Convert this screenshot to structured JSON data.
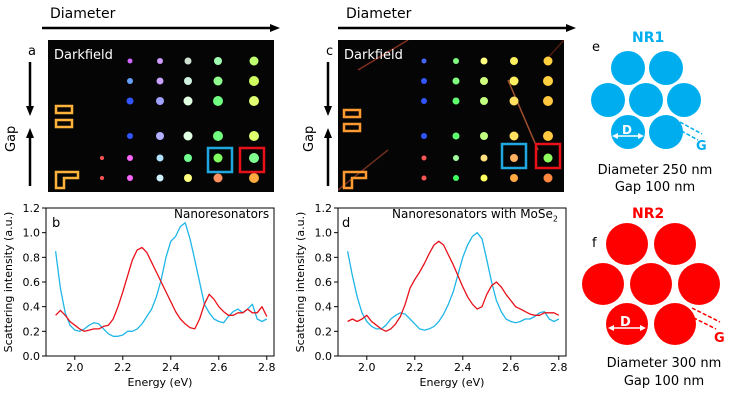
{
  "panels": {
    "a": {
      "letter": "a",
      "label": "Darkfield",
      "top_axis_label": "Diameter",
      "side_axis_label": "Gap"
    },
    "b": {
      "letter": "b",
      "annotation": "Nanoresonators"
    },
    "c": {
      "letter": "c",
      "label": "Darkfield",
      "top_axis_label": "Diameter",
      "side_axis_label": "Gap"
    },
    "d": {
      "letter": "d",
      "annotation_prefix": "Nanoresonators with MoSe",
      "annotation_sub": "2"
    },
    "e": {
      "letter": "e",
      "title": "NR1",
      "diameter_symbol": "D",
      "gap_symbol": "G",
      "caption_line1": "Diameter 250 nm",
      "caption_line2": "Gap 100 nm",
      "color": "#00aeef"
    },
    "f": {
      "letter": "f",
      "title": "NR2",
      "diameter_symbol": "D",
      "gap_symbol": "G",
      "caption_line1": "Diameter 300 nm",
      "caption_line2": "Gap 100 nm",
      "color": "#ff0000"
    }
  },
  "chart_data": [
    {
      "panel": "b",
      "type": "line",
      "xlabel": "Energy (eV)",
      "ylabel": "Scattering intensity (a.u.)",
      "xlim": [
        1.88,
        2.83
      ],
      "ylim": [
        0.0,
        1.2
      ],
      "xticks": [
        "2.0",
        "2.2",
        "2.4",
        "2.6",
        "2.8"
      ],
      "xtick_values": [
        2.0,
        2.2,
        2.4,
        2.6,
        2.8
      ],
      "yticks": [
        "0.0",
        "0.2",
        "0.4",
        "0.6",
        "0.8",
        "1.0",
        "1.2"
      ],
      "ytick_values": [
        0.0,
        0.2,
        0.4,
        0.6,
        0.8,
        1.0,
        1.2
      ],
      "series": [
        {
          "name": "NR1",
          "color": "#1fb6e8",
          "x": [
            1.92,
            1.94,
            1.96,
            1.98,
            2.0,
            2.02,
            2.04,
            2.06,
            2.08,
            2.1,
            2.12,
            2.14,
            2.16,
            2.18,
            2.2,
            2.22,
            2.24,
            2.26,
            2.28,
            2.3,
            2.32,
            2.34,
            2.36,
            2.38,
            2.4,
            2.42,
            2.44,
            2.46,
            2.48,
            2.5,
            2.52,
            2.54,
            2.56,
            2.58,
            2.6,
            2.62,
            2.64,
            2.66,
            2.68,
            2.7,
            2.72,
            2.74,
            2.76,
            2.78,
            2.8
          ],
          "y": [
            0.85,
            0.55,
            0.35,
            0.25,
            0.21,
            0.2,
            0.22,
            0.25,
            0.27,
            0.26,
            0.22,
            0.18,
            0.16,
            0.16,
            0.17,
            0.2,
            0.2,
            0.22,
            0.26,
            0.32,
            0.38,
            0.48,
            0.62,
            0.8,
            0.93,
            0.97,
            1.05,
            1.08,
            0.95,
            0.78,
            0.6,
            0.42,
            0.35,
            0.3,
            0.28,
            0.27,
            0.32,
            0.36,
            0.38,
            0.35,
            0.38,
            0.42,
            0.3,
            0.28,
            0.3
          ]
        },
        {
          "name": "NR2",
          "color": "#e8111a",
          "x": [
            1.92,
            1.94,
            1.96,
            1.98,
            2.0,
            2.02,
            2.04,
            2.06,
            2.08,
            2.1,
            2.12,
            2.14,
            2.16,
            2.18,
            2.2,
            2.22,
            2.24,
            2.26,
            2.28,
            2.3,
            2.32,
            2.34,
            2.36,
            2.38,
            2.4,
            2.42,
            2.44,
            2.46,
            2.48,
            2.5,
            2.52,
            2.54,
            2.56,
            2.58,
            2.6,
            2.62,
            2.64,
            2.66,
            2.68,
            2.7,
            2.72,
            2.74,
            2.76,
            2.78,
            2.8
          ],
          "y": [
            0.33,
            0.37,
            0.33,
            0.28,
            0.25,
            0.22,
            0.2,
            0.21,
            0.22,
            0.22,
            0.24,
            0.25,
            0.3,
            0.4,
            0.52,
            0.65,
            0.78,
            0.86,
            0.88,
            0.84,
            0.76,
            0.68,
            0.6,
            0.52,
            0.44,
            0.36,
            0.3,
            0.26,
            0.23,
            0.22,
            0.3,
            0.42,
            0.5,
            0.46,
            0.4,
            0.36,
            0.33,
            0.33,
            0.35,
            0.35,
            0.38,
            0.35,
            0.35,
            0.4,
            0.32
          ]
        }
      ]
    },
    {
      "panel": "d",
      "type": "line",
      "xlabel": "Energy (eV)",
      "ylabel": "Scattering intensity (a.u.)",
      "xlim": [
        1.88,
        2.83
      ],
      "ylim": [
        0.0,
        1.2
      ],
      "xticks": [
        "2.0",
        "2.2",
        "2.4",
        "2.6",
        "2.8"
      ],
      "xtick_values": [
        2.0,
        2.2,
        2.4,
        2.6,
        2.8
      ],
      "yticks": [
        "0.0",
        "0.2",
        "0.4",
        "0.6",
        "0.8",
        "1.0",
        "1.2"
      ],
      "ytick_values": [
        0.0,
        0.2,
        0.4,
        0.6,
        0.8,
        1.0,
        1.2
      ],
      "series": [
        {
          "name": "NR1",
          "color": "#1fb6e8",
          "x": [
            1.92,
            1.94,
            1.96,
            1.98,
            2.0,
            2.02,
            2.04,
            2.06,
            2.08,
            2.1,
            2.12,
            2.14,
            2.16,
            2.18,
            2.2,
            2.22,
            2.24,
            2.26,
            2.28,
            2.3,
            2.32,
            2.34,
            2.36,
            2.38,
            2.4,
            2.42,
            2.44,
            2.46,
            2.48,
            2.5,
            2.52,
            2.54,
            2.56,
            2.58,
            2.6,
            2.62,
            2.64,
            2.66,
            2.68,
            2.7,
            2.72,
            2.74,
            2.76,
            2.78,
            2.8
          ],
          "y": [
            0.85,
            0.65,
            0.48,
            0.35,
            0.28,
            0.24,
            0.22,
            0.22,
            0.25,
            0.3,
            0.33,
            0.35,
            0.34,
            0.3,
            0.26,
            0.22,
            0.21,
            0.22,
            0.24,
            0.28,
            0.34,
            0.42,
            0.52,
            0.66,
            0.8,
            0.9,
            0.97,
            1.0,
            0.95,
            0.78,
            0.6,
            0.45,
            0.36,
            0.3,
            0.28,
            0.27,
            0.28,
            0.3,
            0.3,
            0.32,
            0.35,
            0.36,
            0.3,
            0.28,
            0.3
          ]
        },
        {
          "name": "NR2",
          "color": "#e8111a",
          "x": [
            1.92,
            1.94,
            1.96,
            1.98,
            2.0,
            2.02,
            2.04,
            2.06,
            2.08,
            2.1,
            2.12,
            2.14,
            2.16,
            2.18,
            2.2,
            2.22,
            2.24,
            2.26,
            2.28,
            2.3,
            2.32,
            2.34,
            2.36,
            2.38,
            2.4,
            2.42,
            2.44,
            2.46,
            2.48,
            2.5,
            2.52,
            2.54,
            2.56,
            2.58,
            2.6,
            2.62,
            2.64,
            2.66,
            2.68,
            2.7,
            2.72,
            2.74,
            2.76,
            2.78,
            2.8
          ],
          "y": [
            0.28,
            0.3,
            0.28,
            0.3,
            0.33,
            0.28,
            0.25,
            0.22,
            0.2,
            0.22,
            0.26,
            0.32,
            0.42,
            0.55,
            0.62,
            0.68,
            0.75,
            0.83,
            0.9,
            0.93,
            0.9,
            0.82,
            0.74,
            0.65,
            0.56,
            0.48,
            0.42,
            0.38,
            0.4,
            0.5,
            0.57,
            0.6,
            0.56,
            0.5,
            0.45,
            0.4,
            0.38,
            0.36,
            0.34,
            0.33,
            0.33,
            0.35,
            0.35,
            0.35,
            0.33
          ]
        }
      ]
    }
  ]
}
